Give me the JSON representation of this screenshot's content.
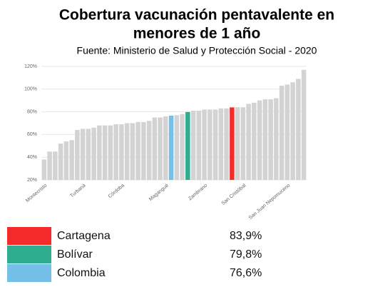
{
  "chart_data": {
    "type": "bar",
    "title": [
      "Cobertura vacunación pentavalente en",
      "menores de 1 año"
    ],
    "subtitle": "Fuente: Ministerio de Salud y Protección Social - 2020",
    "categories": [
      "Montecristo",
      null,
      null,
      null,
      null,
      null,
      null,
      "Turbaná",
      null,
      null,
      null,
      null,
      null,
      null,
      "Córdoba",
      null,
      null,
      null,
      null,
      null,
      null,
      null,
      "Magangué",
      null,
      null,
      null,
      null,
      null,
      null,
      "Zambrano",
      null,
      null,
      null,
      null,
      null,
      null,
      "San Cristóbal",
      null,
      null,
      null,
      null,
      null,
      null,
      null,
      "San Juan Nepomuceno",
      null,
      null,
      null
    ],
    "values": [
      38,
      45,
      45,
      52,
      54,
      55,
      64,
      65,
      65,
      66,
      68,
      68,
      68,
      69,
      69,
      70,
      70,
      71,
      71,
      72,
      75,
      75,
      76,
      76.6,
      77,
      78,
      79.8,
      81,
      81,
      82,
      82,
      82,
      83,
      83,
      83.9,
      84,
      84,
      87,
      88,
      90,
      91,
      91,
      92,
      103,
      104,
      106,
      109,
      117
    ],
    "colors": [
      "#d3d3d3",
      "#d3d3d3",
      "#d3d3d3",
      "#d3d3d3",
      "#d3d3d3",
      "#d3d3d3",
      "#d3d3d3",
      "#d3d3d3",
      "#d3d3d3",
      "#d3d3d3",
      "#d3d3d3",
      "#d3d3d3",
      "#d3d3d3",
      "#d3d3d3",
      "#d3d3d3",
      "#d3d3d3",
      "#d3d3d3",
      "#d3d3d3",
      "#d3d3d3",
      "#d3d3d3",
      "#d3d3d3",
      "#d3d3d3",
      "#d3d3d3",
      "#74c0e8",
      "#d3d3d3",
      "#d3d3d3",
      "#2eae8f",
      "#d3d3d3",
      "#d3d3d3",
      "#d3d3d3",
      "#d3d3d3",
      "#d3d3d3",
      "#d3d3d3",
      "#d3d3d3",
      "#f52a2a",
      "#d3d3d3",
      "#d3d3d3",
      "#d3d3d3",
      "#d3d3d3",
      "#d3d3d3",
      "#d3d3d3",
      "#d3d3d3",
      "#d3d3d3",
      "#d3d3d3",
      "#d3d3d3",
      "#d3d3d3",
      "#d3d3d3",
      "#d3d3d3"
    ],
    "ylim": [
      20,
      120
    ],
    "yticks": [
      {
        "value": 20,
        "label": "20%"
      },
      {
        "value": 40,
        "label": "40%"
      },
      {
        "value": 60,
        "label": "60%"
      },
      {
        "value": 80,
        "label": "80%"
      },
      {
        "value": 100,
        "label": "100%"
      },
      {
        "value": 120,
        "label": "120%"
      }
    ],
    "grid": true,
    "legend": [
      {
        "name": "Cartagena",
        "color": "#f52a2a",
        "value": 83.9,
        "value_label": "83,9%"
      },
      {
        "name": "Bolívar",
        "color": "#2eae8f",
        "value": 79.8,
        "value_label": "79,8%"
      },
      {
        "name": "Colombia",
        "color": "#74c0e8",
        "value": 76.6,
        "value_label": "76,6%"
      }
    ]
  }
}
